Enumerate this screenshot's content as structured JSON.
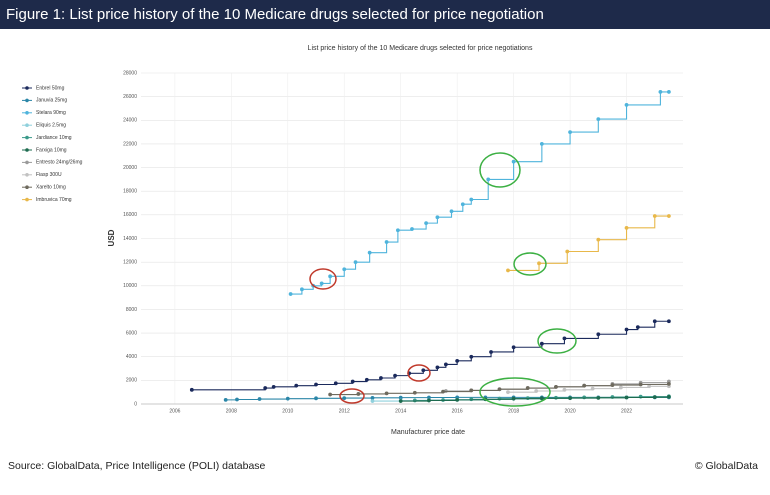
{
  "header": "Figure 1: List price history of the 10 Medicare drugs selected for price negotiation",
  "source": "Source: GlobalData, Price Intelligence (POLI) database",
  "copyright": "© GlobalData",
  "chart_data": {
    "type": "line",
    "step": true,
    "grid": true,
    "title": "List price history of the 10 Medicare drugs selected for price negotiations",
    "xlabel": "Manufacturer price date",
    "ylabel": "USD",
    "xlim": [
      2004.8,
      2024
    ],
    "xticks": [
      2006,
      2008,
      2010,
      2012,
      2014,
      2016,
      2018,
      2020,
      2022
    ],
    "ylim": [
      0,
      28000
    ],
    "yticks": [
      0,
      2000,
      4000,
      6000,
      8000,
      10000,
      12000,
      14000,
      16000,
      18000,
      20000,
      22000,
      24000,
      26000,
      28000
    ],
    "series": [
      {
        "name": "Enbrel 50mg",
        "color": "#1b2a5c",
        "x": [
          2006.6,
          2009.2,
          2009.5,
          2010.3,
          2011,
          2011.7,
          2012.3,
          2012.8,
          2013.3,
          2013.8,
          2014.3,
          2014.8,
          2015.3,
          2015.6,
          2016,
          2016.5,
          2017.2,
          2018,
          2019,
          2019.8,
          2021,
          2022,
          2022.4,
          2023,
          2023.5
        ],
        "values": [
          1200,
          1350,
          1450,
          1550,
          1650,
          1750,
          1900,
          2050,
          2200,
          2400,
          2600,
          2850,
          3100,
          3350,
          3650,
          4000,
          4400,
          4800,
          5100,
          5550,
          5900,
          6300,
          6500,
          7000,
          7000
        ]
      },
      {
        "name": "Januvia 25mg",
        "color": "#2b86a8",
        "x": [
          2007.8,
          2008.2,
          2009,
          2010,
          2011,
          2012,
          2013,
          2014,
          2015,
          2016,
          2017,
          2018,
          2019,
          2020,
          2021,
          2022,
          2023,
          2023.5
        ],
        "values": [
          350,
          380,
          420,
          450,
          480,
          500,
          520,
          540,
          550,
          560,
          560,
          560,
          560,
          560,
          560,
          560,
          560,
          560
        ]
      },
      {
        "name": "Stelara 90mg",
        "color": "#4fb4dc",
        "x": [
          2010.1,
          2010.5,
          2010.9,
          2011.2,
          2011.5,
          2012,
          2012.4,
          2012.9,
          2013.5,
          2013.9,
          2014.4,
          2014.9,
          2015.3,
          2015.8,
          2016.2,
          2016.5,
          2017.1,
          2018,
          2019,
          2020,
          2021,
          2022,
          2023.2,
          2023.5
        ],
        "values": [
          9300,
          9700,
          10000,
          10200,
          10800,
          11400,
          12000,
          12800,
          13700,
          14700,
          14800,
          15300,
          15800,
          16300,
          16900,
          17300,
          19000,
          20500,
          22000,
          23000,
          24100,
          25300,
          26400,
          26400
        ]
      },
      {
        "name": "Eliquis 2.5mg",
        "color": "#8fd0dc",
        "x": [
          2013,
          2014,
          2015,
          2016,
          2017,
          2018,
          2019,
          2020,
          2021,
          2022,
          2023,
          2023.5
        ],
        "values": [
          250,
          280,
          320,
          360,
          400,
          440,
          470,
          500,
          530,
          560,
          600,
          600
        ]
      },
      {
        "name": "Jardiance 10mg",
        "color": "#3a9a8a",
        "x": [
          2014.5,
          2015.5,
          2016.5,
          2017.5,
          2018.5,
          2019.5,
          2020.5,
          2021.5,
          2022.5,
          2023.5
        ],
        "values": [
          300,
          340,
          400,
          450,
          500,
          530,
          560,
          590,
          620,
          650
        ]
      },
      {
        "name": "Farxiga 10mg",
        "color": "#1d6b4f",
        "x": [
          2014,
          2015,
          2016,
          2017,
          2018,
          2019,
          2020,
          2021,
          2022,
          2023,
          2023.5
        ],
        "values": [
          250,
          300,
          350,
          400,
          450,
          480,
          500,
          520,
          550,
          580,
          600
        ]
      },
      {
        "name": "Entresto 24mg/26mg",
        "color": "#9a9a9a",
        "x": [
          2015.6,
          2016.5,
          2017.5,
          2018.5,
          2019.5,
          2020.5,
          2021.5,
          2022.5,
          2023.5
        ],
        "values": [
          1100,
          1150,
          1250,
          1350,
          1450,
          1550,
          1700,
          1800,
          1900
        ]
      },
      {
        "name": "Fiasp 300U",
        "color": "#c2c2c2",
        "x": [
          2017.8,
          2018.8,
          2019.8,
          2020.8,
          2021.8,
          2022.8,
          2023.5
        ],
        "values": [
          1000,
          1100,
          1200,
          1300,
          1400,
          1500,
          1500
        ]
      },
      {
        "name": "Xarelto 10mg",
        "color": "#6e6a5e",
        "x": [
          2011.5,
          2012.5,
          2013.5,
          2014.5,
          2015.5,
          2016.5,
          2017.5,
          2018.5,
          2019.5,
          2020.5,
          2021.5,
          2022.5,
          2023.5
        ],
        "values": [
          800,
          850,
          900,
          950,
          1050,
          1150,
          1250,
          1350,
          1450,
          1550,
          1600,
          1650,
          1700
        ]
      },
      {
        "name": "Imbruvica 70mg",
        "color": "#e8b84a",
        "x": [
          2017.8,
          2018.9,
          2019.9,
          2021,
          2022,
          2023,
          2023.5
        ],
        "values": [
          11300,
          11900,
          12900,
          13900,
          14900,
          15900,
          15900
        ]
      }
    ]
  }
}
